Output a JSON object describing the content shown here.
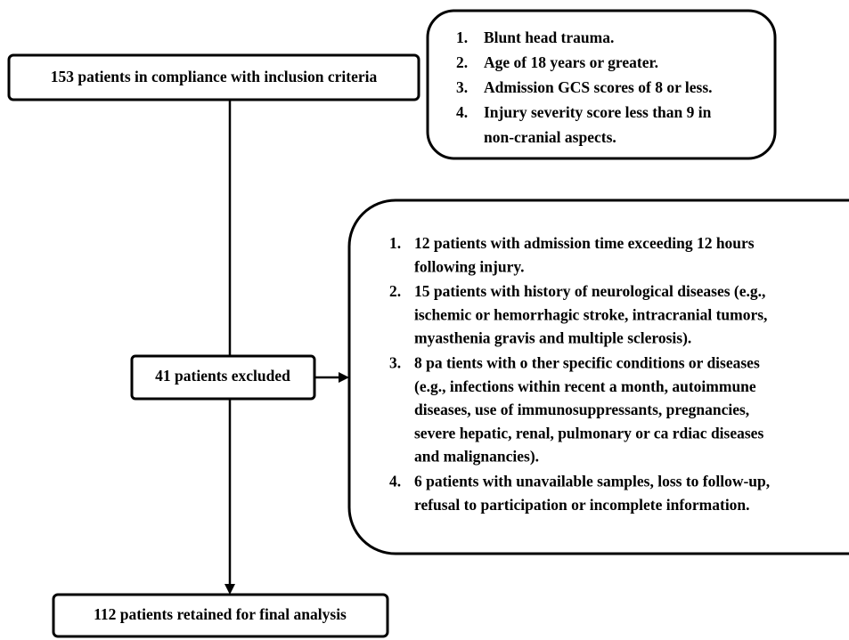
{
  "nodes": {
    "inclusion": {
      "label": "153 patients in compliance with inclusion criteria"
    },
    "criteria": {
      "items": [
        {
          "number": "1.",
          "lines": [
            "Blunt head trauma."
          ]
        },
        {
          "number": "2.",
          "lines": [
            "Age of 18 years or greater."
          ]
        },
        {
          "number": "3.",
          "lines": [
            "Admission GCS scores of 8 or less."
          ]
        },
        {
          "number": "4.",
          "lines": [
            "Injury severity score less than 9 in",
            "non-cranial aspects."
          ]
        }
      ]
    },
    "excluded": {
      "label": "41 patients excluded"
    },
    "exclusion_reasons": {
      "items": [
        {
          "number": "1.",
          "lines": [
            "12  patients with  admission time exceeding 12 hours",
            "following injury."
          ]
        },
        {
          "number": "2.",
          "lines": [
            "15 patients with history of neurological diseases (e.g.,",
            "ischemic or hemorrhagic stroke, intracranial tumors,",
            "myasthenia gravis and multiple sclerosis)."
          ]
        },
        {
          "number": "3.",
          "lines": [
            "8 pa tients with o ther specific conditions or diseases",
            "(e.g., infections within recent a month, autoimmune",
            "diseases, use of immunosuppressants, pregnancies,",
            "severe hepatic, renal, pulmonary or ca  rdiac diseases",
            "and malignancies)."
          ]
        },
        {
          "number": "4.",
          "lines": [
            "6 patients with unavailable samples, loss to follow-up,",
            "refusal to participation or incomplete information."
          ]
        }
      ]
    },
    "final": {
      "label": "112 patients retained for final analysis"
    }
  }
}
